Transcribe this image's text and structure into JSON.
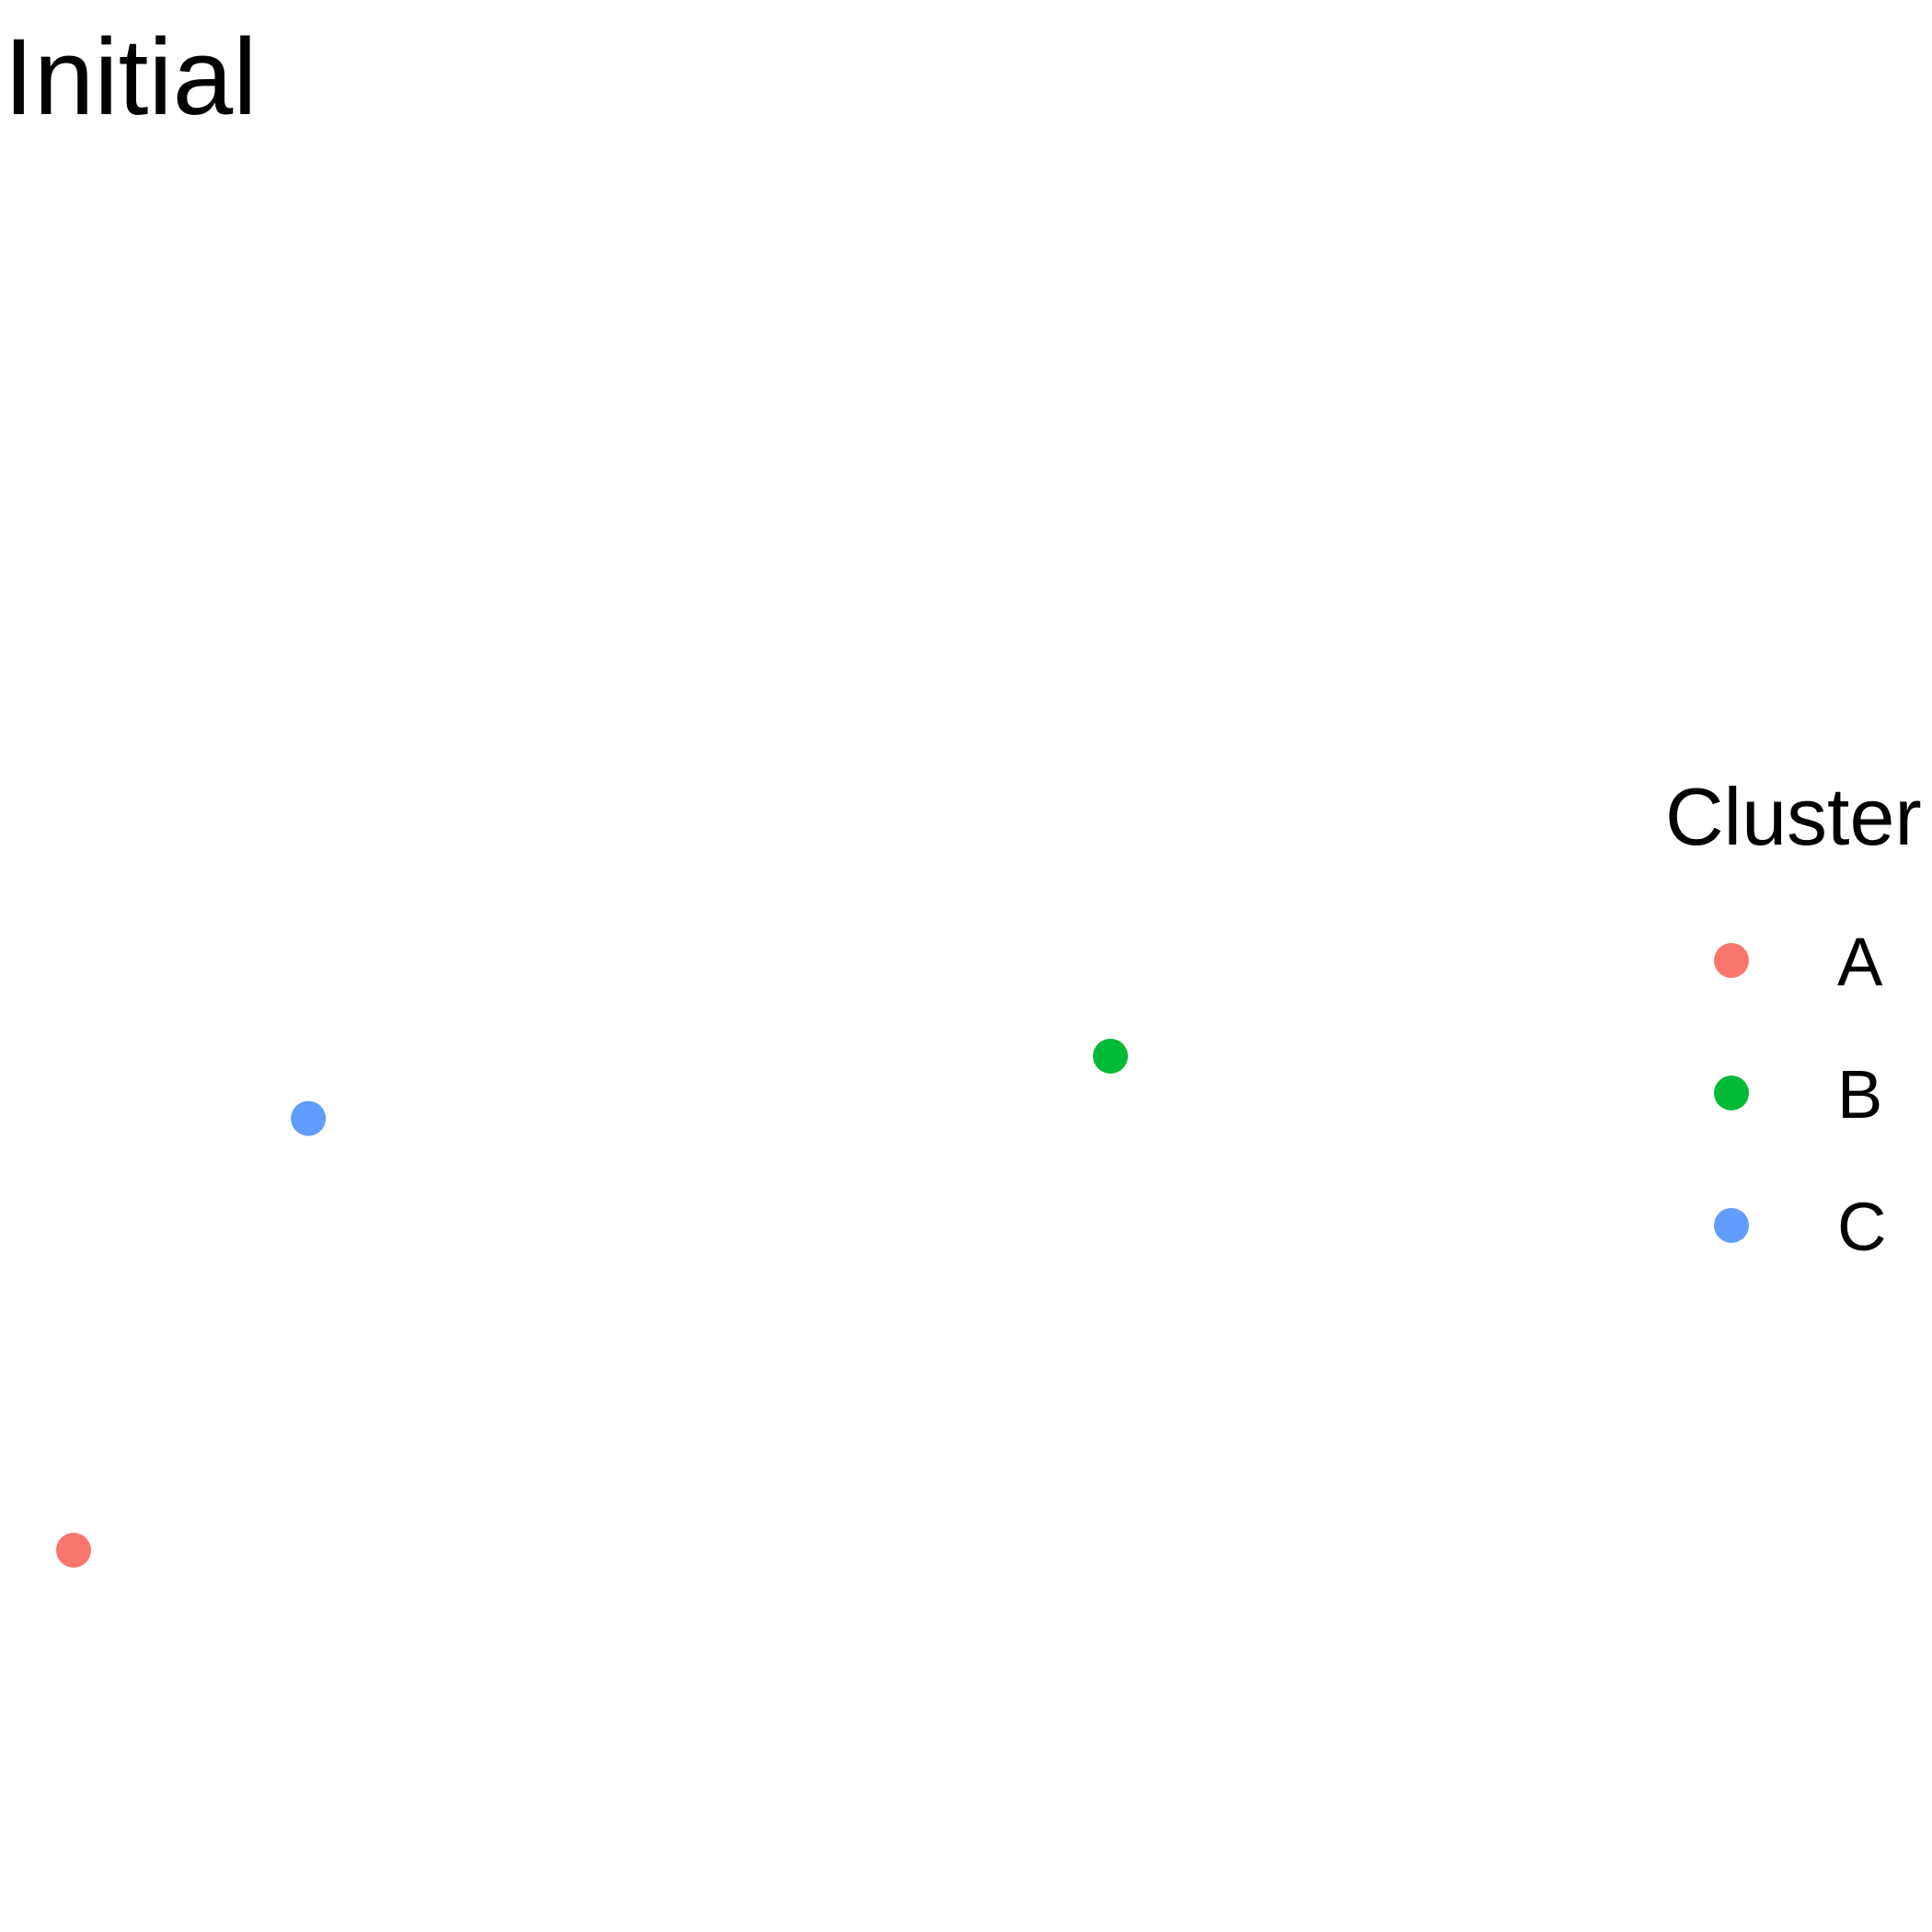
{
  "chart_data": {
    "type": "scatter",
    "title": "Initial",
    "xlabel": "",
    "ylabel": "",
    "grid": false,
    "axes_visible": false,
    "legend": {
      "title": "Cluster",
      "position": "right"
    },
    "series": [
      {
        "name": "A",
        "color": "#F8766D",
        "x": [
          0.0
        ],
        "y": [
          0.0
        ]
      },
      {
        "name": "B",
        "color": "#00BA38",
        "x": [
          1.0
        ],
        "y": [
          1.0
        ]
      },
      {
        "name": "C",
        "color": "#619CFF",
        "x": [
          0.2264
        ],
        "y": [
          0.8739
        ]
      }
    ]
  }
}
